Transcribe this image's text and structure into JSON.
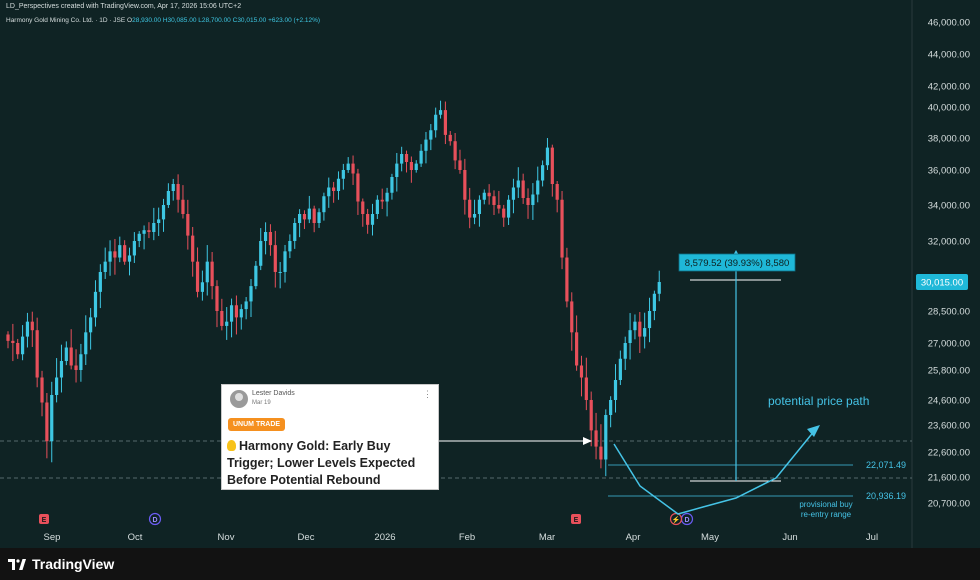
{
  "header": {
    "credit": "LD_Perspectives created with TradingView.com, Apr 17, 2026 15:06 UTC+2",
    "symbol": "Harmony Gold Mining Co. Ltd. · 1D · JSE",
    "ohlc_prefix": "O",
    "open": "28,930.00",
    "high": "H30,085.00",
    "low": "L28,700.00",
    "close": "C30,015.00",
    "change": "+623.00 (+2.12%)"
  },
  "footer": {
    "brand": "TradingView"
  },
  "idea_card": {
    "author": "Lester Davids",
    "date": "Mar 19",
    "badge": "UNUM TRADE",
    "title": "Harmony Gold: Early Buy Trigger; Lower Levels Expected Before Potential Rebound"
  },
  "colors": {
    "background": "#0f2324",
    "up": "#3ec7e3",
    "down": "#e8505b",
    "annotation": "#45c3e6",
    "last_price_label": "#1fb8d8"
  },
  "chart_data": {
    "type": "candlestick",
    "y_axis_labels": [
      "46,000.00",
      "44,000.00",
      "42,000.00",
      "40,000.00",
      "38,000.00",
      "36,000.00",
      "34,000.00",
      "32,000.00",
      "30,015.00",
      "28,500.00",
      "27,000.00",
      "25,800.00",
      "24,600.00",
      "23,600.00",
      "22,600.00",
      "21,600.00",
      "20,700.00"
    ],
    "y_axis_values": [
      46000,
      44000,
      42000,
      40000,
      38000,
      36000,
      34000,
      32000,
      30015,
      28500,
      27000,
      25800,
      24600,
      23600,
      22600,
      21600,
      20700
    ],
    "x_axis_labels": [
      "Sep",
      "Oct",
      "Nov",
      "Dec",
      "2026",
      "Feb",
      "Mar",
      "Apr",
      "May",
      "Jun",
      "Jul"
    ],
    "last_price": "30,015.00",
    "measure_label": "8,579.52 (39.93%) 8,580",
    "levels": [
      {
        "value": 22071.49,
        "label": "22,071.49"
      },
      {
        "value": 20936.19,
        "label": "20,936.19"
      }
    ],
    "annotations": [
      "potential price path",
      "provisional buy",
      "re-entry range"
    ],
    "event_markers": [
      "E",
      "D",
      "E",
      "D"
    ],
    "closes": [
      27100,
      27000,
      26500,
      27300,
      28000,
      27600,
      25500,
      24500,
      23000,
      24800,
      25500,
      26200,
      26800,
      26000,
      25800,
      26500,
      27500,
      28200,
      29500,
      30500,
      31000,
      31500,
      31200,
      31800,
      31000,
      31300,
      32000,
      32400,
      32600,
      32500,
      33000,
      33200,
      34000,
      34800,
      35200,
      34300,
      33500,
      32300,
      31000,
      29500,
      30000,
      31000,
      29800,
      28500,
      27800,
      28000,
      28800,
      28200,
      28600,
      29000,
      29800,
      30800,
      32000,
      32500,
      31800,
      30500,
      30500,
      31500,
      32000,
      33000,
      33500,
      33200,
      33800,
      33000,
      33600,
      34500,
      35000,
      34800,
      35500,
      36000,
      36400,
      35800,
      34200,
      33500,
      32900,
      33500,
      34300,
      34200,
      34700,
      35600,
      36400,
      37000,
      36500,
      36000,
      36400,
      37200,
      37900,
      38500,
      39500,
      39800,
      38200,
      37800,
      36600,
      36000,
      34300,
      33300,
      33500,
      34300,
      34700,
      34500,
      34000,
      33800,
      33300,
      34300,
      35000,
      35400,
      34400,
      34000,
      34600,
      35400,
      36300,
      37400,
      35200,
      34300,
      31200,
      29000,
      27500,
      26000,
      25500,
      24600,
      23400,
      22800,
      22300,
      24000,
      24600,
      25400,
      26300,
      27000,
      27600,
      28000,
      27300,
      27700,
      28500,
      29400,
      30015
    ],
    "ylim": [
      20200,
      46400
    ]
  }
}
